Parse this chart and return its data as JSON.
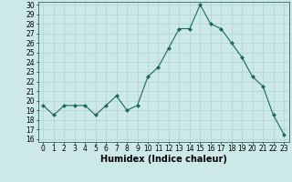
{
  "x": [
    0,
    1,
    2,
    3,
    4,
    5,
    6,
    7,
    8,
    9,
    10,
    11,
    12,
    13,
    14,
    15,
    16,
    17,
    18,
    19,
    20,
    21,
    22,
    23
  ],
  "y": [
    19.5,
    18.5,
    19.5,
    19.5,
    19.5,
    18.5,
    19.5,
    20.5,
    19.0,
    19.5,
    22.5,
    23.5,
    25.5,
    27.5,
    27.5,
    30.0,
    28.0,
    27.5,
    26.0,
    24.5,
    22.5,
    21.5,
    18.5,
    16.5
  ],
  "line_color": "#1a6b5a",
  "marker": "D",
  "marker_size": 2,
  "bg_color": "#cce8e8",
  "grid_color": "#aacccc",
  "xlabel": "Humidex (Indice chaleur)",
  "ylim_min": 16,
  "ylim_max": 30,
  "xlim_min": -0.5,
  "xlim_max": 23.5,
  "yticks": [
    16,
    17,
    18,
    19,
    20,
    21,
    22,
    23,
    24,
    25,
    26,
    27,
    28,
    29,
    30
  ],
  "xticks": [
    0,
    1,
    2,
    3,
    4,
    5,
    6,
    7,
    8,
    9,
    10,
    11,
    12,
    13,
    14,
    15,
    16,
    17,
    18,
    19,
    20,
    21,
    22,
    23
  ],
  "tick_label_size": 5.5,
  "xlabel_size": 7,
  "line_width": 0.8,
  "spine_color": "#336666"
}
